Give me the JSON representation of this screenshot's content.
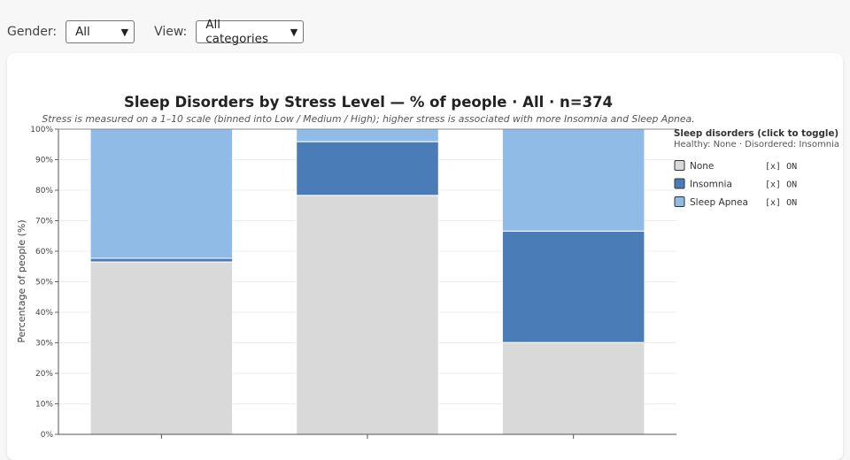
{
  "controls": {
    "gender_label": "Gender:",
    "gender_value": "All",
    "view_label": "View:",
    "view_value": "All categories"
  },
  "chart_data": {
    "type": "bar",
    "stacked": true,
    "title": "Sleep Disorders by Stress Level — % of people · All · n=374",
    "subtitle": "Stress is measured on a 1–10 scale (binned into Low / Medium / High); higher stress is associated with more Insomnia and Sleep Apnea.",
    "ylabel": "Percentage of people (%)",
    "xlabel": "",
    "ylim": [
      0,
      100
    ],
    "yticks": [
      "0%",
      "10%",
      "20%",
      "30%",
      "40%",
      "50%",
      "60%",
      "70%",
      "80%",
      "90%",
      "100%"
    ],
    "grid": true,
    "categories": [
      "",
      "",
      ""
    ],
    "series": [
      {
        "name": "None",
        "color": "#d9d9d9",
        "values": [
          56.5,
          78.3,
          30.1
        ]
      },
      {
        "name": "Insomnia",
        "color": "#4a7db8",
        "values": [
          1.2,
          17.6,
          36.5
        ]
      },
      {
        "name": "Sleep Apnea",
        "color": "#8fbbe6",
        "values": [
          42.3,
          4.1,
          33.4
        ]
      }
    ],
    "legend": {
      "placement": "right",
      "title": "Sleep disorders (click to toggle)",
      "subtitle": "Healthy: None · Disordered: Insomnia",
      "state_label": "[x] ON"
    }
  }
}
